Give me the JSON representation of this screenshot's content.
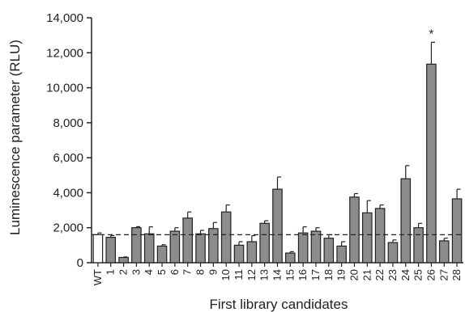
{
  "colors": {
    "bar_fill": "#8c8c8c",
    "wt_fill": "#ffffff",
    "stroke": "#222222",
    "reference_line": "#222222"
  },
  "chart_data": {
    "type": "bar",
    "xlabel": "First library candidates",
    "ylabel": "Luminescence parameter (RLU)",
    "ylim": [
      0,
      14000
    ],
    "yticks": [
      0,
      2000,
      4000,
      6000,
      8000,
      10000,
      12000,
      14000
    ],
    "ytick_labels": [
      "0",
      "2,000",
      "4,000",
      "6,000",
      "8,000",
      "10,000",
      "12,000",
      "14,000"
    ],
    "categories": [
      "WT",
      "1",
      "2",
      "3",
      "4",
      "5",
      "6",
      "7",
      "8",
      "9",
      "10",
      "11",
      "12",
      "13",
      "14",
      "15",
      "16",
      "17",
      "18",
      "19",
      "20",
      "21",
      "22",
      "23",
      "24",
      "25",
      "26",
      "27",
      "28"
    ],
    "values": [
      1600,
      1450,
      300,
      2000,
      1650,
      950,
      1800,
      2550,
      1650,
      1950,
      2900,
      1000,
      1200,
      2250,
      4200,
      550,
      1700,
      1800,
      1400,
      950,
      3750,
      2850,
      3100,
      1150,
      4800,
      2000,
      11350,
      1250,
      3650
    ],
    "errors": [
      100,
      100,
      30,
      60,
      400,
      80,
      200,
      350,
      200,
      350,
      400,
      200,
      350,
      150,
      700,
      80,
      350,
      200,
      200,
      250,
      200,
      700,
      200,
      150,
      750,
      250,
      1250,
      150,
      550
    ],
    "reference_line_value": 1600,
    "reference_line_style": "dashed",
    "annotations": [
      {
        "category": "26",
        "text": "*"
      }
    ],
    "grid": false,
    "legend": "none"
  }
}
